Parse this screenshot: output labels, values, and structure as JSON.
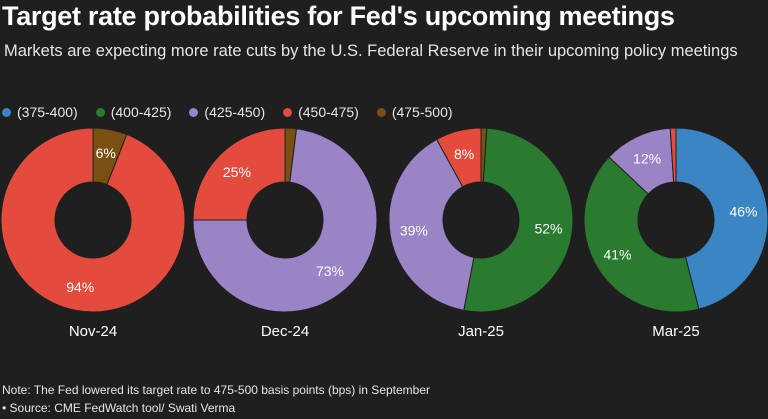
{
  "header": {
    "title": "Target rate probabilities for Fed's upcoming meetings",
    "subtitle": "Markets are expecting more rate cuts by the U.S. Federal Reserve in their upcoming policy meetings"
  },
  "legend": [
    {
      "label": "(375-400)",
      "color": "#3a86c4"
    },
    {
      "label": "(400-425)",
      "color": "#2a7a2f"
    },
    {
      "label": "(425-450)",
      "color": "#9b84c6"
    },
    {
      "label": "(450-475)",
      "color": "#e34c3d"
    },
    {
      "label": "(475-500)",
      "color": "#7a4f12"
    }
  ],
  "chart_data": [
    {
      "type": "pie",
      "subtype": "donut",
      "category": "Nov-24",
      "series": [
        {
          "name": "(475-500)",
          "value": 6,
          "label": "6%"
        },
        {
          "name": "(450-475)",
          "value": 94,
          "label": "94%"
        }
      ]
    },
    {
      "type": "pie",
      "subtype": "donut",
      "category": "Dec-24",
      "series": [
        {
          "name": "(475-500)",
          "value": 2,
          "label": ""
        },
        {
          "name": "(425-450)",
          "value": 73,
          "label": "73%"
        },
        {
          "name": "(450-475)",
          "value": 25,
          "label": "25%"
        }
      ]
    },
    {
      "type": "pie",
      "subtype": "donut",
      "category": "Jan-25",
      "series": [
        {
          "name": "(475-500)",
          "value": 1,
          "label": ""
        },
        {
          "name": "(400-425)",
          "value": 52,
          "label": "52%"
        },
        {
          "name": "(425-450)",
          "value": 39,
          "label": "39%"
        },
        {
          "name": "(450-475)",
          "value": 8,
          "label": "8%"
        }
      ]
    },
    {
      "type": "pie",
      "subtype": "donut",
      "category": "Mar-25",
      "series": [
        {
          "name": "(375-400)",
          "value": 46,
          "label": "46%"
        },
        {
          "name": "(400-425)",
          "value": 41,
          "label": "41%"
        },
        {
          "name": "(425-450)",
          "value": 12,
          "label": "12%"
        },
        {
          "name": "(450-475)",
          "value": 1,
          "label": ""
        }
      ]
    }
  ],
  "footer": {
    "note": "Note: The Fed lowered its target rate to 475-500 basis points (bps) in September",
    "source": "• Source: CME FedWatch tool/ Swati Verma"
  }
}
